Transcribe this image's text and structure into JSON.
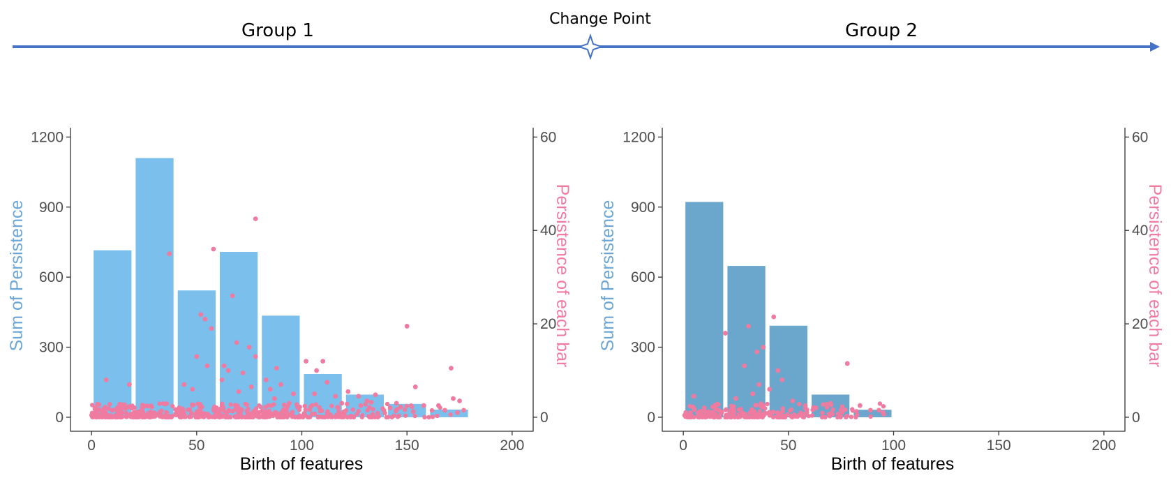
{
  "timeline": {
    "group1_label": "Group 1",
    "group2_label": "Group 2",
    "change_point_label": "Change Point",
    "arrow_color": "#4472c4"
  },
  "colors": {
    "bar_group1": "#7bbfec",
    "bar_group2": "#6ba6cc",
    "points": "#f07ba0",
    "ylabel_left": "#6ba6d6",
    "ylabel_right": "#f07ba0",
    "axis": "#333333"
  },
  "chart_data": [
    {
      "type": "bar+scatter",
      "group": "Group 1",
      "xlabel": "Birth of features",
      "ylabel": "Sum of Persistence",
      "y2label": "Persistence of each bar",
      "xlim": [
        -10,
        210
      ],
      "xticks": [
        0,
        50,
        100,
        150,
        200
      ],
      "ylim": [
        -60,
        1240
      ],
      "yticks": [
        0,
        300,
        600,
        900,
        1200
      ],
      "y2lim": [
        -3,
        62
      ],
      "y2ticks": [
        0,
        20,
        40,
        60
      ],
      "bars": [
        {
          "x_start": 1,
          "x_end": 19,
          "value": 715
        },
        {
          "x_start": 21,
          "x_end": 39,
          "value": 1110
        },
        {
          "x_start": 41,
          "x_end": 59,
          "value": 543
        },
        {
          "x_start": 61,
          "x_end": 79,
          "value": 708
        },
        {
          "x_start": 81,
          "x_end": 99,
          "value": 435
        },
        {
          "x_start": 101,
          "x_end": 119,
          "value": 185
        },
        {
          "x_start": 121,
          "x_end": 139,
          "value": 97
        },
        {
          "x_start": 141,
          "x_end": 159,
          "value": 57
        },
        {
          "x_start": 161,
          "x_end": 179,
          "value": 33
        }
      ],
      "points": [
        [
          7,
          8
        ],
        [
          18,
          7
        ],
        [
          37,
          35
        ],
        [
          52,
          22
        ],
        [
          54,
          21
        ],
        [
          57,
          19
        ],
        [
          58,
          36
        ],
        [
          67,
          26
        ],
        [
          78,
          42.5
        ],
        [
          50,
          13
        ],
        [
          55,
          11
        ],
        [
          63,
          11
        ],
        [
          65,
          10
        ],
        [
          69,
          16
        ],
        [
          72,
          9.5
        ],
        [
          75,
          15
        ],
        [
          78,
          13
        ],
        [
          83,
          8
        ],
        [
          85,
          6
        ],
        [
          88,
          10.5
        ],
        [
          90,
          7
        ],
        [
          96,
          5
        ],
        [
          102,
          12
        ],
        [
          107,
          10
        ],
        [
          110,
          12
        ],
        [
          112,
          7.5
        ],
        [
          122,
          5.5
        ],
        [
          127,
          4.5
        ],
        [
          131,
          3.5
        ],
        [
          135,
          4.8
        ],
        [
          142,
          2
        ],
        [
          145,
          3
        ],
        [
          150,
          19.5
        ],
        [
          154,
          6.5
        ],
        [
          158,
          2.5
        ],
        [
          165,
          2.5
        ],
        [
          171,
          10.5
        ],
        [
          172,
          4
        ],
        [
          175,
          3.5
        ],
        [
          177,
          1.5
        ],
        [
          44,
          7
        ],
        [
          48,
          6
        ],
        [
          62,
          8
        ],
        [
          70,
          5.5
        ],
        [
          76,
          6.5
        ],
        [
          87,
          4
        ],
        [
          94,
          3
        ],
        [
          99,
          2.2
        ],
        [
          106,
          5
        ],
        [
          116,
          4.5
        ],
        [
          119,
          3
        ],
        [
          128,
          2.5
        ],
        [
          133,
          3.2
        ],
        [
          139,
          1.5
        ],
        [
          147,
          2.2
        ],
        [
          153,
          1.2
        ],
        [
          168,
          1.5
        ],
        [
          174,
          1
        ]
      ]
    },
    {
      "type": "bar+scatter",
      "group": "Group 2",
      "xlabel": "Birth of features",
      "ylabel": "Sum of Persistence",
      "y2label": "Persistence of each bar",
      "xlim": [
        -10,
        210
      ],
      "xticks": [
        0,
        50,
        100,
        150,
        200
      ],
      "ylim": [
        -60,
        1240
      ],
      "yticks": [
        0,
        300,
        600,
        900,
        1200
      ],
      "y2lim": [
        -3,
        62
      ],
      "y2ticks": [
        0,
        20,
        40,
        60
      ],
      "bars": [
        {
          "x_start": 1,
          "x_end": 19,
          "value": 922
        },
        {
          "x_start": 21,
          "x_end": 39,
          "value": 648
        },
        {
          "x_start": 41,
          "x_end": 59,
          "value": 392
        },
        {
          "x_start": 61,
          "x_end": 79,
          "value": 97
        },
        {
          "x_start": 81,
          "x_end": 99,
          "value": 32
        }
      ],
      "points": [
        [
          5,
          4.5
        ],
        [
          20,
          18
        ],
        [
          29,
          11
        ],
        [
          31,
          19.5
        ],
        [
          35,
          14
        ],
        [
          38,
          15
        ],
        [
          43,
          21.5
        ],
        [
          45,
          10
        ],
        [
          36,
          7
        ],
        [
          41,
          6
        ],
        [
          47,
          8
        ],
        [
          33,
          5
        ],
        [
          52,
          3.5
        ],
        [
          58,
          2.5
        ],
        [
          63,
          2
        ],
        [
          70,
          3
        ],
        [
          78,
          11.5
        ],
        [
          75,
          1.5
        ],
        [
          84,
          2.5
        ],
        [
          89,
          1.5
        ],
        [
          93,
          1.5
        ],
        [
          95,
          1
        ],
        [
          25,
          4
        ],
        [
          15,
          2.5
        ],
        [
          10,
          2
        ]
      ]
    }
  ]
}
